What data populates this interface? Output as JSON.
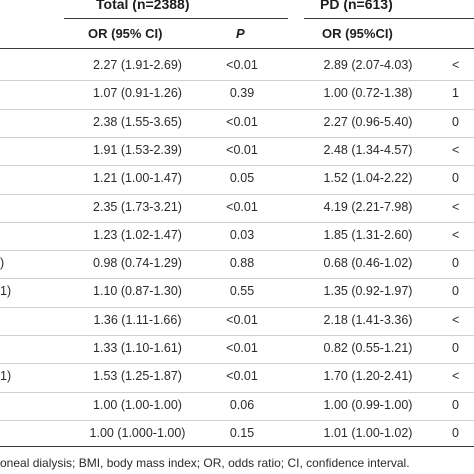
{
  "header": {
    "total_group": "Total (n=2388)",
    "pd_group": "PD (n=613)",
    "or_label_total": "OR (95% CI)",
    "p_label": "P",
    "or_label_pd": "OR (95%CI)"
  },
  "rows": [
    {
      "label": "",
      "or_total": "2.27 (1.91-2.69)",
      "p_total": "<0.01",
      "or_pd": "2.89 (2.07-4.03)",
      "p_pd": "<"
    },
    {
      "label": "",
      "or_total": "1.07 (0.91-1.26)",
      "p_total": "0.39",
      "or_pd": "1.00 (0.72-1.38)",
      "p_pd": "1"
    },
    {
      "label": "",
      "or_total": "2.38 (1.55-3.65)",
      "p_total": "<0.01",
      "or_pd": "2.27 (0.96-5.40)",
      "p_pd": "0"
    },
    {
      "label": "",
      "or_total": "1.91 (1.53-2.39)",
      "p_total": "<0.01",
      "or_pd": "2.48 (1.34-4.57)",
      "p_pd": "<"
    },
    {
      "label": "",
      "or_total": "1.21 (1.00-1.47)",
      "p_total": "0.05",
      "or_pd": "1.52 (1.04-2.22)",
      "p_pd": "0"
    },
    {
      "label": "",
      "or_total": "2.35 (1.73-3.21)",
      "p_total": "<0.01",
      "or_pd": "4.19 (2.21-7.98)",
      "p_pd": "<"
    },
    {
      "label": "",
      "or_total": "1.23 (1.02-1.47)",
      "p_total": "0.03",
      "or_pd": "1.85 (1.31-2.60)",
      "p_pd": "<"
    },
    {
      "label": ")",
      "or_total": "0.98 (0.74-1.29)",
      "p_total": "0.88",
      "or_pd": "0.68 (0.46-1.02)",
      "p_pd": "0"
    },
    {
      "label": "1)",
      "or_total": "1.10 (0.87-1.30)",
      "p_total": "0.55",
      "or_pd": "1.35 (0.92-1.97)",
      "p_pd": "0"
    },
    {
      "label": "",
      "or_total": "1.36 (1.11-1.66)",
      "p_total": "<0.01",
      "or_pd": "2.18 (1.41-3.36)",
      "p_pd": "<"
    },
    {
      "label": "",
      "or_total": "1.33 (1.10-1.61)",
      "p_total": "<0.01",
      "or_pd": "0.82 (0.55-1.21)",
      "p_pd": "0"
    },
    {
      "label": "1)",
      "or_total": "1.53 (1.25-1.87)",
      "p_total": "<0.01",
      "or_pd": "1.70 (1.20-2.41)",
      "p_pd": "<"
    },
    {
      "label": "",
      "or_total": "1.00 (1.00-1.00)",
      "p_total": "0.06",
      "or_pd": "1.00 (0.99-1.00)",
      "p_pd": "0"
    },
    {
      "label": "",
      "or_total": "1.00 (1.000-1.00)",
      "p_total": "0.15",
      "or_pd": "1.01 (1.00-1.02)",
      "p_pd": "0"
    }
  ],
  "footer": "oneal dialysis; BMI, body mass index; OR, odds ratio; CI, confidence interval."
}
